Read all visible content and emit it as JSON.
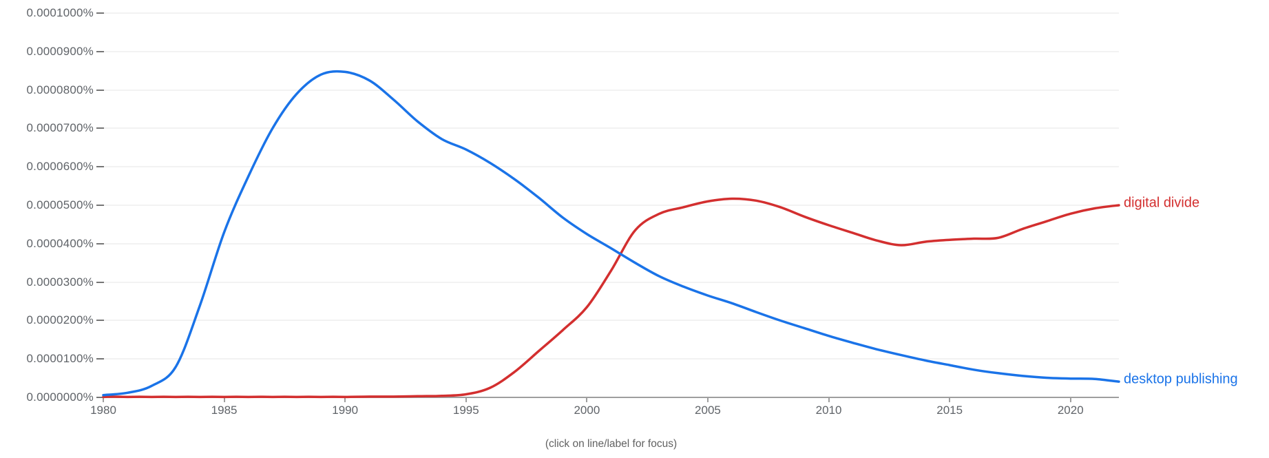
{
  "chart": {
    "footer_note": "(click on line/label for focus)",
    "y_axis": {
      "tick_labels": [
        "0.0001000%",
        "0.0000900%",
        "0.0000800%",
        "0.0000700%",
        "0.0000600%",
        "0.0000500%",
        "0.0000400%",
        "0.0000300%",
        "0.0000200%",
        "0.0000100%",
        "0.0000000%"
      ],
      "label_color": "#5f6368",
      "tick_dash_color": "#757575"
    },
    "x_axis": {
      "tick_labels": [
        "1980",
        "1985",
        "1990",
        "1995",
        "2000",
        "2005",
        "2010",
        "2015",
        "2020"
      ],
      "tick_years": [
        1980,
        1985,
        1990,
        1995,
        2000,
        2005,
        2010,
        2015,
        2020
      ],
      "label_color": "#5f6368",
      "axis_line_color": "#9e9e9e"
    },
    "gridline_color": "#f2f2f2",
    "background_color": "#ffffff"
  },
  "chart_data": {
    "type": "line",
    "title": "",
    "xlabel": "",
    "ylabel": "",
    "xlim": [
      1980,
      2022
    ],
    "ylim": [
      0,
      0.0001
    ],
    "grid": true,
    "legend_position": "inline-right-of-line-end",
    "x": [
      1980,
      1981,
      1982,
      1983,
      1984,
      1985,
      1986,
      1987,
      1988,
      1989,
      1990,
      1991,
      1992,
      1993,
      1994,
      1995,
      1996,
      1997,
      1998,
      1999,
      2000,
      2001,
      2002,
      2003,
      2004,
      2005,
      2006,
      2007,
      2008,
      2009,
      2010,
      2011,
      2012,
      2013,
      2014,
      2015,
      2016,
      2017,
      2018,
      2019,
      2020,
      2021,
      2022
    ],
    "series": [
      {
        "name": "digital divide",
        "color": "#d32f2f",
        "values": [
          1e-07,
          1e-07,
          1e-07,
          1e-07,
          1e-07,
          1e-07,
          1e-07,
          1e-07,
          1e-07,
          1e-07,
          1e-07,
          2e-07,
          2e-07,
          3e-07,
          4e-07,
          8e-07,
          2.5e-06,
          6.6e-06,
          1.2e-05,
          1.75e-05,
          2.35e-05,
          3.3e-05,
          4.35e-05,
          4.78e-05,
          4.95e-05,
          5.1e-05,
          5.17e-05,
          5.12e-05,
          4.95e-05,
          4.7e-05,
          4.48e-05,
          4.28e-05,
          4.08e-05,
          3.96e-05,
          4.05e-05,
          4.1e-05,
          4.13e-05,
          4.15e-05,
          4.38e-05,
          4.58e-05,
          4.78e-05,
          4.92e-05,
          5e-05
        ]
      },
      {
        "name": "desktop publishing",
        "color": "#1a73e8",
        "values": [
          6e-07,
          1.2e-06,
          3e-06,
          8e-06,
          2.4e-05,
          4.3e-05,
          5.75e-05,
          7e-05,
          7.9e-05,
          8.4e-05,
          8.47e-05,
          8.25e-05,
          7.75e-05,
          7.18e-05,
          6.72e-05,
          6.45e-05,
          6.1e-05,
          5.68e-05,
          5.2e-05,
          4.68e-05,
          4.25e-05,
          3.88e-05,
          3.5e-05,
          3.15e-05,
          2.88e-05,
          2.65e-05,
          2.45e-05,
          2.22e-05,
          2e-05,
          1.8e-05,
          1.6e-05,
          1.42e-05,
          1.25e-05,
          1.1e-05,
          9.6e-06,
          8.4e-06,
          7.2e-06,
          6.3e-06,
          5.6e-06,
          5.1e-06,
          4.9e-06,
          4.8e-06,
          4.1e-06
        ]
      }
    ]
  }
}
